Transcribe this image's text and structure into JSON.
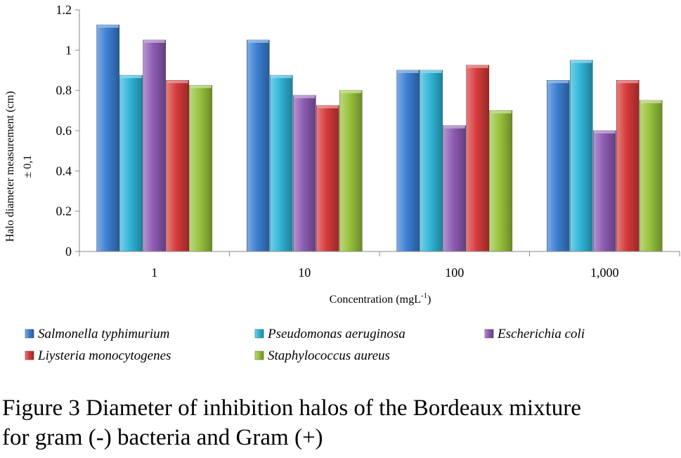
{
  "chart_data": {
    "type": "bar",
    "categories": [
      "1",
      "10",
      "100",
      "1,000"
    ],
    "series": [
      {
        "name": "Salmonella typhimurium",
        "color": "#3c7fd2",
        "values": [
          1.125,
          1.05,
          0.9,
          0.85
        ]
      },
      {
        "name": "Pseudomonas aeruginosa",
        "color": "#2fb5d8",
        "values": [
          0.875,
          0.875,
          0.9,
          0.95
        ]
      },
      {
        "name": "Escherichia coli",
        "color": "#8d5cb3",
        "values": [
          1.05,
          0.775,
          0.625,
          0.6
        ]
      },
      {
        "name": "Liysteria monocytogenes",
        "color": "#d63a3a",
        "values": [
          0.85,
          0.725,
          0.925,
          0.85
        ]
      },
      {
        "name": "Staphylococcus aureus",
        "color": "#98c23c",
        "values": [
          0.825,
          0.8,
          0.7,
          0.75
        ]
      }
    ],
    "yticks": [
      "0",
      "0.2",
      "0.4",
      "0.6",
      "0.8",
      "1",
      "1.2"
    ],
    "ylim": [
      0,
      1.2
    ],
    "xlabel": "Concentration (mgL",
    "xlabel_sup": "-1",
    "xlabel_end": ")",
    "ylabel_line1": "Halo diameter measurement  (cm)",
    "ylabel_line2": "± 0,1",
    "grid": false,
    "legend_position": "bottom"
  },
  "caption": {
    "line1": "Figure 3 Diameter of inhibition halos of the Bordeaux mixture",
    "line2": "for gram (-) bacteria and Gram (+)"
  }
}
